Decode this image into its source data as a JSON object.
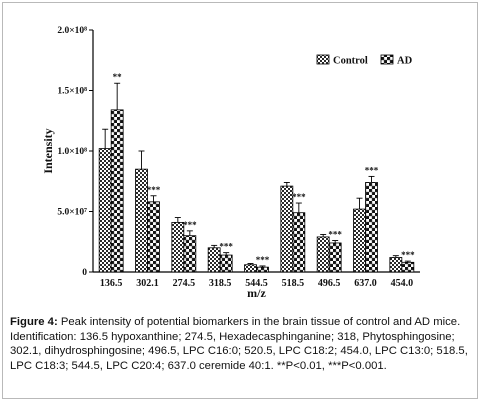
{
  "chart_data": {
    "type": "bar",
    "xlabel": "m/z",
    "ylabel": "Intensity",
    "ylim": [
      0,
      200000000
    ],
    "y_ticks": [
      {
        "value": 0,
        "label": "0"
      },
      {
        "value": 50000000,
        "label": "5.0×10⁷"
      },
      {
        "value": 100000000,
        "label": "1.0×10⁸"
      },
      {
        "value": 150000000,
        "label": "1.5×10⁸"
      },
      {
        "value": 200000000,
        "label": "2.0×10⁸"
      }
    ],
    "categories": [
      "136.5",
      "302.1",
      "274.5",
      "318.5",
      "544.5",
      "518.5",
      "496.5",
      "637.0",
      "454.0"
    ],
    "series": [
      {
        "name": "Control",
        "values": [
          102000000,
          85000000,
          41000000,
          20000000,
          6000000,
          71000000,
          29000000,
          52000000,
          12000000
        ],
        "errors": [
          16000000,
          15000000,
          4000000,
          2000000,
          1000000,
          3000000,
          2000000,
          9000000,
          1500000
        ]
      },
      {
        "name": "AD",
        "values": [
          134000000,
          58000000,
          30000000,
          14000000,
          4000000,
          49000000,
          24000000,
          74000000,
          8000000
        ],
        "errors": [
          22000000,
          5000000,
          4000000,
          2000000,
          1000000,
          8000000,
          2000000,
          5000000,
          1000000
        ]
      }
    ],
    "annotations": [
      "**",
      "***",
      "***",
      "***",
      "***",
      "***",
      "***",
      "***",
      "***"
    ],
    "legend_position": "top-right"
  },
  "caption": {
    "label": "Figure 4:",
    "text": " Peak intensity of potential biomarkers in the brain tissue of control and AD mice. Identification: 136.5 hypoxanthine; 274.5, Hexadecasphinganine; 318, Phytosphingosine; 302.1, dihydrosphingosine; 496.5, LPC C16:0; 520.5, LPC C18:2; 454.0, LPC C13:0; 518.5, LPC C18:3; 544.5, LPC C20:4; 637.0 ceremide 40:1. **P<0.01, ***P<0.001."
  }
}
